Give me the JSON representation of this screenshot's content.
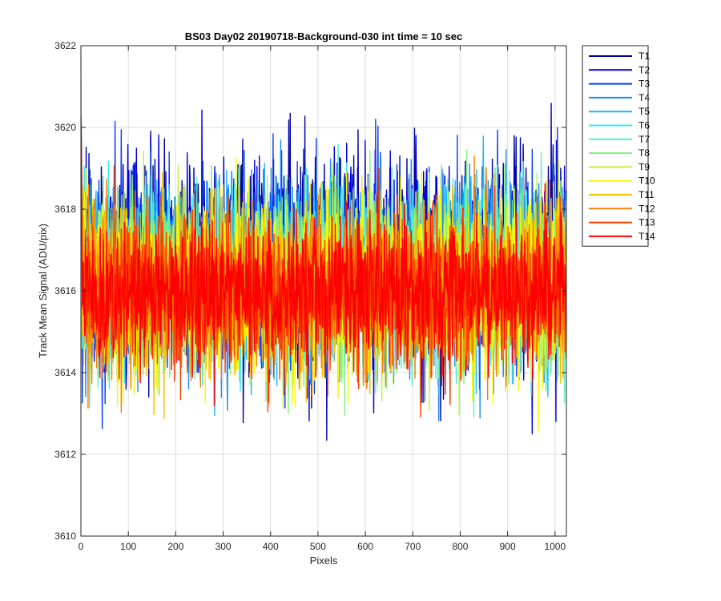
{
  "chart_data": {
    "type": "line",
    "title": "BS03 Day02 20190718-Background-030 int time = 10 sec",
    "xlabel": "Pixels",
    "ylabel": "Track Mean Signal (ADU/pix)",
    "xlim": [
      0,
      1024
    ],
    "ylim": [
      3610,
      3622
    ],
    "xticks": [
      0,
      100,
      200,
      300,
      400,
      500,
      600,
      700,
      800,
      900,
      1000
    ],
    "yticks": [
      3610,
      3612,
      3614,
      3616,
      3618,
      3620,
      3622
    ],
    "grid": true,
    "legend_position": "outside-top-right",
    "n_points_per_series": 1024,
    "series": [
      {
        "name": "T1",
        "color": "#0000a8",
        "mean": 3616.8,
        "spread": 1.2
      },
      {
        "name": "T2",
        "color": "#0000d8",
        "mean": 3616.7,
        "spread": 1.2
      },
      {
        "name": "T3",
        "color": "#0a3ff0",
        "mean": 3616.6,
        "spread": 1.15
      },
      {
        "name": "T4",
        "color": "#1e8cf5",
        "mean": 3616.5,
        "spread": 1.1
      },
      {
        "name": "T5",
        "color": "#20b4f8",
        "mean": 3616.45,
        "spread": 1.1
      },
      {
        "name": "T6",
        "color": "#38e8f0",
        "mean": 3616.4,
        "spread": 1.1
      },
      {
        "name": "T7",
        "color": "#5af0c8",
        "mean": 3616.3,
        "spread": 1.05
      },
      {
        "name": "T8",
        "color": "#80f080",
        "mean": 3616.25,
        "spread": 1.05
      },
      {
        "name": "T9",
        "color": "#c0f040",
        "mean": 3616.2,
        "spread": 1.05
      },
      {
        "name": "T10",
        "color": "#f8f800",
        "mean": 3616.1,
        "spread": 1.1
      },
      {
        "name": "T11",
        "color": "#f8c000",
        "mean": 3616.1,
        "spread": 1.0
      },
      {
        "name": "T12",
        "color": "#f88000",
        "mean": 3616.05,
        "spread": 0.95
      },
      {
        "name": "T13",
        "color": "#f84000",
        "mean": 3616.0,
        "spread": 0.9
      },
      {
        "name": "T14",
        "color": "#ff0000",
        "mean": 3616.0,
        "spread": 0.85
      }
    ]
  }
}
